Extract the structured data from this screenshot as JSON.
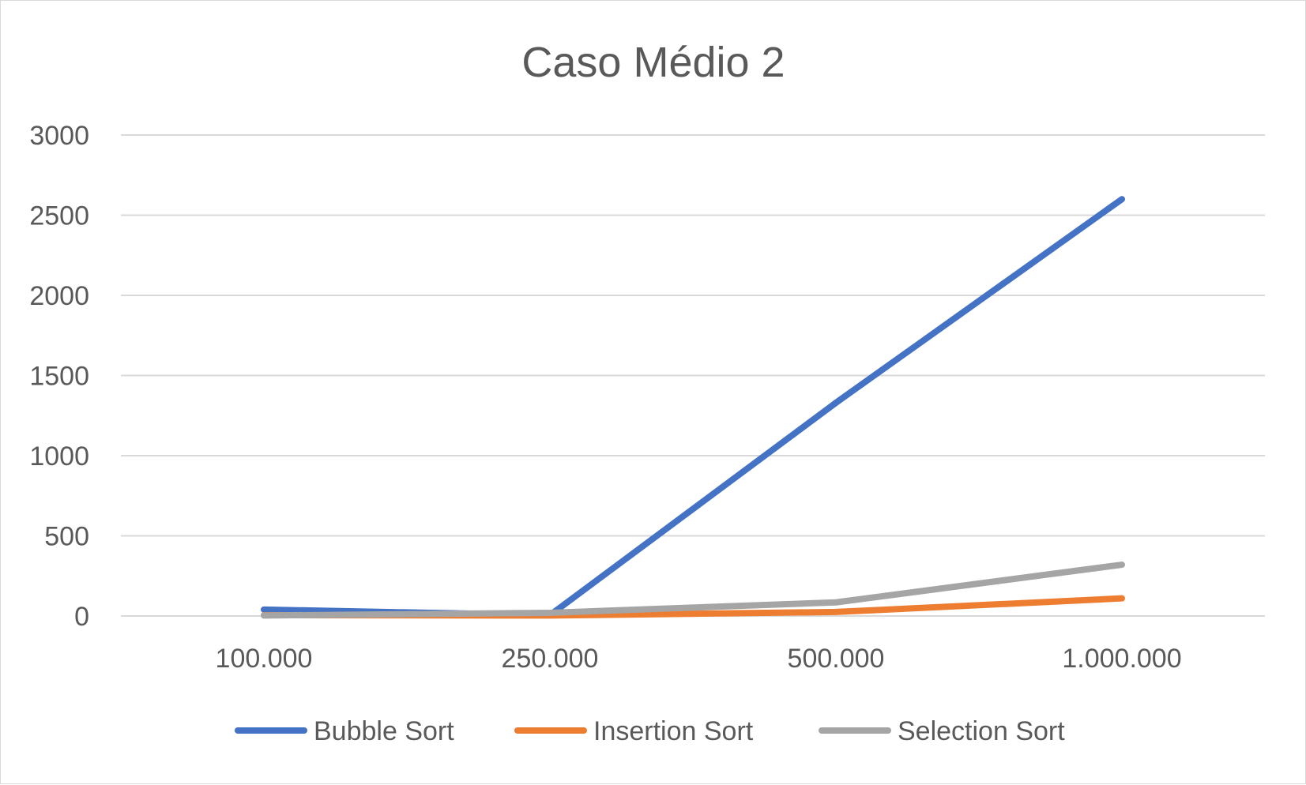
{
  "chart_data": {
    "type": "line",
    "title": "Caso Médio 2",
    "xlabel": "",
    "ylabel": "",
    "categories": [
      "100.000",
      "250.000",
      "500.000",
      "1.000.000"
    ],
    "ylim": [
      0,
      3000
    ],
    "yticks": [
      0,
      500,
      1000,
      1500,
      2000,
      2500,
      3000
    ],
    "grid": true,
    "legend_position": "bottom",
    "series": [
      {
        "name": "Bubble Sort",
        "color": "#4472c4",
        "values": [
          40,
          5,
          1330,
          2600
        ]
      },
      {
        "name": "Insertion Sort",
        "color": "#ed7d31",
        "values": [
          5,
          3,
          25,
          110
        ]
      },
      {
        "name": "Selection Sort",
        "color": "#a5a5a5",
        "values": [
          3,
          20,
          85,
          320
        ]
      }
    ]
  }
}
